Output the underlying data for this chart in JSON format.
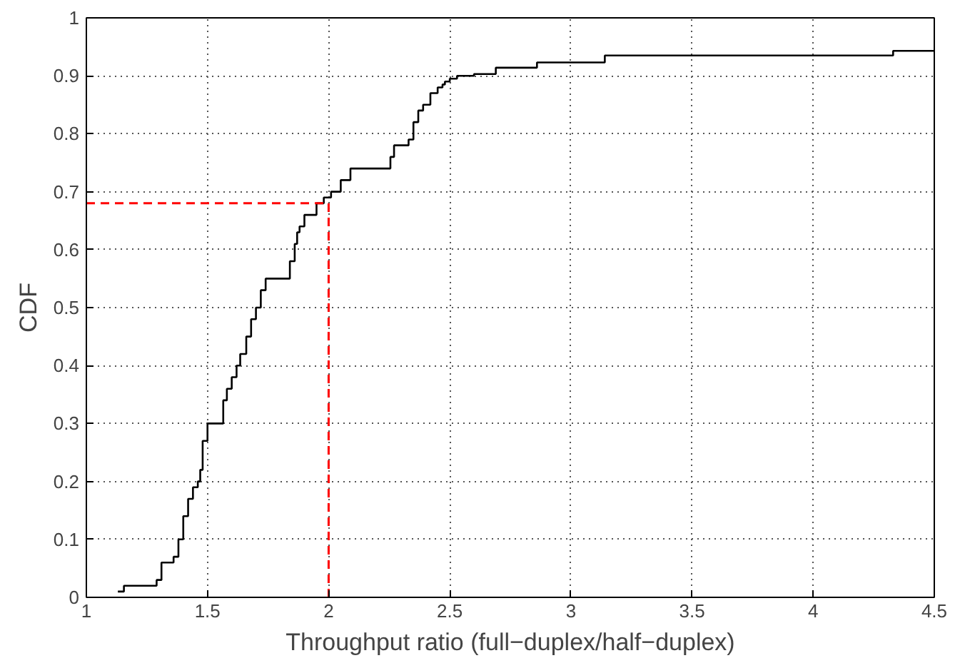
{
  "chart_data": {
    "type": "step",
    "xlabel": "Throughput ratio (full−duplex/half−duplex)",
    "ylabel": "CDF",
    "x": [
      1.13,
      1.155,
      1.29,
      1.31,
      1.36,
      1.38,
      1.4,
      1.42,
      1.44,
      1.46,
      1.47,
      1.48,
      1.5,
      1.565,
      1.58,
      1.6,
      1.62,
      1.635,
      1.66,
      1.68,
      1.7,
      1.72,
      1.74,
      1.84,
      1.86,
      1.87,
      1.88,
      1.9,
      1.95,
      1.98,
      2.01,
      2.05,
      2.09,
      2.255,
      2.27,
      2.33,
      2.35,
      2.37,
      2.39,
      2.42,
      2.45,
      2.47,
      2.48,
      2.5,
      2.53,
      2.6,
      2.69,
      2.86,
      3.14,
      4.33,
      4.5
    ],
    "series": [
      {
        "color": "#000000",
        "values": [
          0.01,
          0.02,
          0.03,
          0.06,
          0.07,
          0.1,
          0.14,
          0.17,
          0.19,
          0.2,
          0.22,
          0.27,
          0.3,
          0.34,
          0.36,
          0.38,
          0.4,
          0.42,
          0.45,
          0.48,
          0.5,
          0.53,
          0.55,
          0.58,
          0.61,
          0.63,
          0.64,
          0.66,
          0.68,
          0.69,
          0.7,
          0.72,
          0.74,
          0.76,
          0.78,
          0.79,
          0.82,
          0.84,
          0.85,
          0.87,
          0.88,
          0.885,
          0.89,
          0.895,
          0.9,
          0.903,
          0.914,
          0.923,
          0.935,
          0.943,
          0.943
        ]
      }
    ],
    "xlim": [
      1,
      4.5
    ],
    "ylim": [
      0,
      1
    ],
    "xticks": [
      1,
      1.5,
      2,
      2.5,
      3,
      3.5,
      4,
      4.5
    ],
    "yticks": [
      0,
      0.1,
      0.2,
      0.3,
      0.4,
      0.5,
      0.6,
      0.7,
      0.8,
      0.9,
      1
    ],
    "grid": true,
    "ref_lines": [
      {
        "axis": "y",
        "value": 0.68,
        "color": "#ff0000",
        "line_style": "dashed"
      },
      {
        "axis": "x",
        "value": 2,
        "color": "#ff0000",
        "line_style": "dashed"
      }
    ]
  }
}
